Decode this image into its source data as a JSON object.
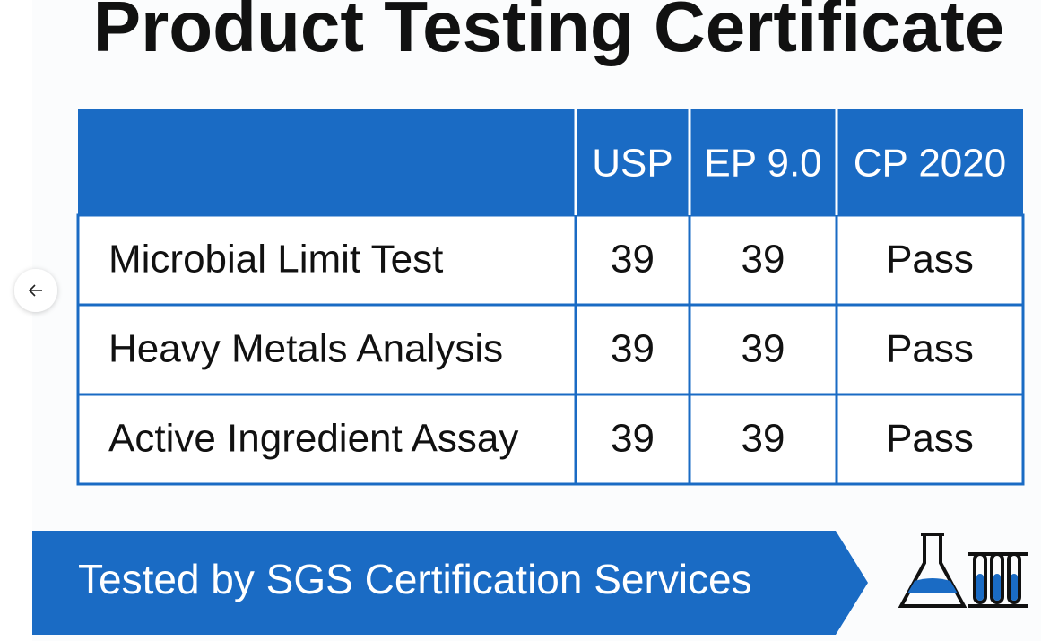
{
  "title": "Product Testing Certificate",
  "table": {
    "header": [
      "USP",
      "EP 9.0",
      "CP 2020"
    ],
    "rows": [
      [
        "Microbial Limit Test",
        39,
        39,
        "Pass"
      ],
      [
        "Heavy Metals Analysis",
        39,
        39,
        "Pass"
      ],
      [
        "Active Ingredient Assay",
        39,
        39,
        "Pass"
      ]
    ]
  },
  "banner": "Tested by SGS Certification Services"
}
